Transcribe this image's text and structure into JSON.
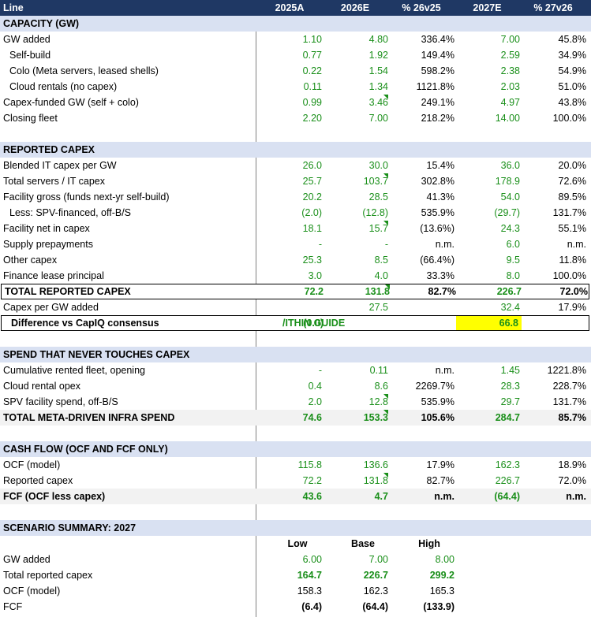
{
  "header": [
    "Line",
    "2025A",
    "2026E",
    "% 26v25",
    "2027E",
    "% 27v26"
  ],
  "sections": {
    "capacity": "CAPACITY (GW)",
    "capex": "REPORTED CAPEX",
    "spend": "SPEND THAT NEVER TOUCHES CAPEX",
    "cash": "CASH FLOW (OCF AND FCF ONLY)",
    "scenario": "SCENARIO SUMMARY: 2027"
  },
  "capacity_rows": [
    [
      "GW added",
      "1.10",
      "4.80",
      "336.4%",
      "7.00",
      "45.8%"
    ],
    [
      "Self-build",
      "0.77",
      "1.92",
      "149.4%",
      "2.59",
      "34.9%"
    ],
    [
      "Colo (Meta servers, leased shells)",
      "0.22",
      "1.54",
      "598.2%",
      "2.38",
      "54.9%"
    ],
    [
      "Cloud rentals (no capex)",
      "0.11",
      "1.34",
      "1121.8%",
      "2.03",
      "51.0%"
    ],
    [
      "Capex-funded GW (self + colo)",
      "0.99",
      "3.46",
      "249.1%",
      "4.97",
      "43.8%"
    ],
    [
      "Closing fleet",
      "2.20",
      "7.00",
      "218.2%",
      "14.00",
      "100.0%"
    ]
  ],
  "capex_rows": [
    [
      "Blended IT capex per GW",
      "26.0",
      "30.0",
      "15.4%",
      "36.0",
      "20.0%"
    ],
    [
      "Total servers / IT capex",
      "25.7",
      "103.7",
      "302.8%",
      "178.9",
      "72.6%"
    ],
    [
      "Facility gross (funds next-yr self-build)",
      "20.2",
      "28.5",
      "41.3%",
      "54.0",
      "89.5%"
    ],
    [
      "Less: SPV-financed, off-B/S",
      "(2.0)",
      "(12.8)",
      "535.9%",
      "(29.7)",
      "131.7%"
    ],
    [
      "Facility net in capex",
      "18.1",
      "15.7",
      "(13.6%)",
      "24.3",
      "55.1%"
    ],
    [
      "Supply prepayments",
      "-",
      "-",
      "n.m.",
      "6.0",
      "n.m."
    ],
    [
      "Other capex",
      "25.3",
      "8.5",
      "(66.4%)",
      "9.5",
      "11.8%"
    ],
    [
      "Finance lease principal",
      "3.0",
      "4.0",
      "33.3%",
      "8.0",
      "100.0%"
    ]
  ],
  "total_capex": [
    "TOTAL REPORTED CAPEX",
    "72.2",
    "131.8",
    "82.7%",
    "226.7",
    "72.0%"
  ],
  "capex_per_gw": [
    "Capex per GW added",
    "",
    "27.5",
    "",
    "32.4",
    "17.9%"
  ],
  "consensus": {
    "label": "Difference vs CapIQ consensus",
    "value_2025": "(0.0)",
    "guide": "/ITHIN GUIDE",
    "value_2027": "66.8"
  },
  "spend_rows": [
    [
      "Cumulative rented fleet, opening",
      "-",
      "0.11",
      "n.m.",
      "1.45",
      "1221.8%"
    ],
    [
      "Cloud rental opex",
      "0.4",
      "8.6",
      "2269.7%",
      "28.3",
      "228.7%"
    ],
    [
      "SPV facility spend, off-B/S",
      "2.0",
      "12.8",
      "535.9%",
      "29.7",
      "131.7%"
    ]
  ],
  "total_spend": [
    "TOTAL META-DRIVEN INFRA SPEND",
    "74.6",
    "153.3",
    "105.6%",
    "284.7",
    "85.7%"
  ],
  "cash_rows": [
    [
      "OCF (model)",
      "115.8",
      "136.6",
      "17.9%",
      "162.3",
      "18.9%"
    ],
    [
      "Reported capex",
      "72.2",
      "131.8",
      "82.7%",
      "226.7",
      "72.0%"
    ]
  ],
  "fcf": [
    "FCF (OCF less capex)",
    "43.6",
    "4.7",
    "n.m.",
    "(64.4)",
    "n.m."
  ],
  "scenario_head": [
    "Low",
    "Base",
    "High"
  ],
  "scenario_rows": [
    [
      "GW added",
      "6.00",
      "7.00",
      "8.00"
    ],
    [
      "Total reported capex",
      "164.7",
      "226.7",
      "299.2"
    ],
    [
      "OCF (model)",
      "158.3",
      "162.3",
      "165.3"
    ],
    [
      "FCF",
      "(6.4)",
      "(64.4)",
      "(133.9)"
    ]
  ],
  "colors": {
    "header_bg": "#1F3864",
    "section_bg": "#D9E1F2",
    "input_green": "#1a8f1a",
    "highlight": "#FFFF00"
  }
}
